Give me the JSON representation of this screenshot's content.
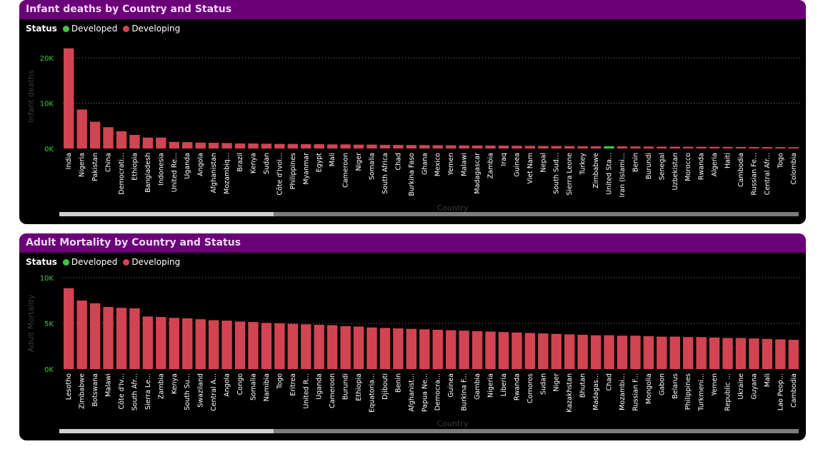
{
  "colors": {
    "developed": "#3ec83e",
    "developing": "#d24452",
    "header_bg": "#6a0078",
    "axis_tick": "#3ec83e",
    "grid": "#7a7a7a"
  },
  "legend": {
    "title": "Status",
    "developed": "Developed",
    "developing": "Developing"
  },
  "chart_data": [
    {
      "type": "bar",
      "title": "Infant deaths by Country and Status",
      "xlabel": "Country",
      "ylabel": "Infant deaths",
      "ylim": [
        0,
        23000
      ],
      "yticks": [
        0,
        10000,
        20000
      ],
      "ytick_labels": [
        "0K",
        "10K",
        "20K"
      ],
      "grid": true,
      "legend_position": "top-left",
      "categories": [
        "India",
        "Nigeria",
        "Pakistan",
        "China",
        "Democrati...",
        "Ethiopia",
        "Bangladesh",
        "Indonesia",
        "United Re...",
        "Uganda",
        "Angola",
        "Afghanistan",
        "Mozambiq...",
        "Brazil",
        "Kenya",
        "Sudan",
        "Côte d'Ivoi...",
        "Philippines",
        "Myanmar",
        "Egypt",
        "Mali",
        "Cameroon",
        "Niger",
        "Somalia",
        "South Africa",
        "Chad",
        "Burkina Faso",
        "Ghana",
        "Mexico",
        "Yemen",
        "Malawi",
        "Madagascar",
        "Zambia",
        "Iraq",
        "Guinea",
        "Viet Nam",
        "Nepal",
        "South Sud...",
        "Sierra Leone",
        "Turkey",
        "Zimbabwe",
        "United Sta...",
        "Iran (Islami...",
        "Benin",
        "Burundi",
        "Senegal",
        "Uzbekistan",
        "Morocco",
        "Rwanda",
        "Algeria",
        "Haiti",
        "Cambodia",
        "Russian Fe...",
        "Central Afr...",
        "Togo",
        "Colombia"
      ],
      "values": [
        22100,
        8600,
        5900,
        4700,
        3800,
        3000,
        2400,
        2400,
        1450,
        1400,
        1300,
        1250,
        1200,
        1100,
        1100,
        1050,
        1000,
        1000,
        950,
        950,
        900,
        900,
        850,
        850,
        800,
        780,
        760,
        740,
        720,
        700,
        680,
        660,
        640,
        620,
        600,
        580,
        560,
        540,
        520,
        500,
        490,
        480,
        460,
        440,
        420,
        400,
        390,
        380,
        370,
        360,
        350,
        340,
        330,
        320,
        310,
        300
      ],
      "status": [
        "Developing",
        "Developing",
        "Developing",
        "Developing",
        "Developing",
        "Developing",
        "Developing",
        "Developing",
        "Developing",
        "Developing",
        "Developing",
        "Developing",
        "Developing",
        "Developing",
        "Developing",
        "Developing",
        "Developing",
        "Developing",
        "Developing",
        "Developing",
        "Developing",
        "Developing",
        "Developing",
        "Developing",
        "Developing",
        "Developing",
        "Developing",
        "Developing",
        "Developing",
        "Developing",
        "Developing",
        "Developing",
        "Developing",
        "Developing",
        "Developing",
        "Developing",
        "Developing",
        "Developing",
        "Developing",
        "Developing",
        "Developing",
        "Developed",
        "Developing",
        "Developing",
        "Developing",
        "Developing",
        "Developing",
        "Developing",
        "Developing",
        "Developing",
        "Developing",
        "Developing",
        "Developing",
        "Developing",
        "Developing",
        "Developing"
      ]
    },
    {
      "type": "bar",
      "title": "Adult Mortality by Country and Status",
      "xlabel": "Country",
      "ylabel": "Adult Mortality",
      "ylim": [
        0,
        10000
      ],
      "yticks": [
        0,
        5000,
        10000
      ],
      "ytick_labels": [
        "0K",
        "5K",
        "10K"
      ],
      "grid": true,
      "legend_position": "top-left",
      "categories": [
        "Lesotho",
        "Zimbabwe",
        "Botswana",
        "Malawi",
        "Côte d'Iv...",
        "South Afr...",
        "Sierra Le...",
        "Zambia",
        "Kenya",
        "South Su...",
        "Swaziland",
        "Central A...",
        "Angola",
        "Congo",
        "Somalia",
        "Namibia",
        "Togo",
        "Eritrea",
        "United R...",
        "Uganda",
        "Cameroon",
        "Burundi",
        "Ethiopia",
        "Equatoria...",
        "Djibouti",
        "Benin",
        "Afghanist...",
        "Papua Ne...",
        "Democra...",
        "Guinea",
        "Burkina F...",
        "Gambia",
        "Nigeria",
        "Liberia",
        "Rwanda",
        "Comoros",
        "Sudan",
        "Niger",
        "Kazakhstan",
        "Bhutan",
        "Madagas...",
        "Chad",
        "Mozambi...",
        "Russian F...",
        "Mongolia",
        "Gabon",
        "Belarus",
        "Philippines",
        "Turkmeni...",
        "Yemen",
        "Republic ...",
        "Ukraine",
        "Guyana",
        "Mali",
        "Lao Peop...",
        "Cambodia"
      ],
      "values": [
        8850,
        7500,
        7200,
        6800,
        6700,
        6650,
        5750,
        5700,
        5600,
        5550,
        5450,
        5350,
        5300,
        5200,
        5150,
        5050,
        5000,
        4950,
        4900,
        4850,
        4800,
        4700,
        4650,
        4550,
        4500,
        4450,
        4400,
        4350,
        4300,
        4250,
        4200,
        4150,
        4100,
        4050,
        4000,
        3950,
        3900,
        3850,
        3800,
        3750,
        3700,
        3700,
        3650,
        3650,
        3600,
        3550,
        3550,
        3500,
        3500,
        3450,
        3400,
        3400,
        3350,
        3300,
        3250,
        3200
      ],
      "status": [
        "Developing",
        "Developing",
        "Developing",
        "Developing",
        "Developing",
        "Developing",
        "Developing",
        "Developing",
        "Developing",
        "Developing",
        "Developing",
        "Developing",
        "Developing",
        "Developing",
        "Developing",
        "Developing",
        "Developing",
        "Developing",
        "Developing",
        "Developing",
        "Developing",
        "Developing",
        "Developing",
        "Developing",
        "Developing",
        "Developing",
        "Developing",
        "Developing",
        "Developing",
        "Developing",
        "Developing",
        "Developing",
        "Developing",
        "Developing",
        "Developing",
        "Developing",
        "Developing",
        "Developing",
        "Developing",
        "Developing",
        "Developing",
        "Developing",
        "Developing",
        "Developing",
        "Developing",
        "Developing",
        "Developing",
        "Developing",
        "Developing",
        "Developing",
        "Developing",
        "Developing",
        "Developing",
        "Developing",
        "Developing",
        "Developing"
      ]
    }
  ]
}
